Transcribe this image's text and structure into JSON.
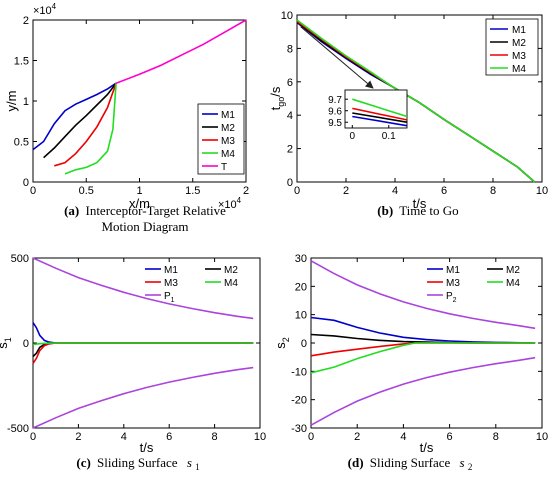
{
  "colors": {
    "M1": "#0000cc",
    "M2": "#000000",
    "M3": "#ee0000",
    "M4": "#22dd22",
    "T": "#ff00cc",
    "P": "#aa44dd"
  },
  "captions": [
    {
      "label": "(a)",
      "text": "Interceptor-Target Relative",
      "text2": "Motion Diagram"
    },
    {
      "label": "(b)",
      "text": "Time to Go"
    },
    {
      "label": "(c)",
      "text": "Sliding Surface",
      "sym": "s",
      "sub": "1"
    },
    {
      "label": "(d)",
      "text": "Sliding Surface",
      "sym": "s",
      "sub": "2"
    }
  ],
  "chart_data": [
    {
      "type": "line",
      "xlabel": "x/m",
      "ylabel": "y/m",
      "x_exponent": "×10",
      "x_exponent_power": "4",
      "y_exponent": "×10",
      "y_exponent_power": "4",
      "xlim": [
        0,
        2
      ],
      "ylim": [
        0,
        2
      ],
      "xticks": [
        "0",
        "0.5",
        "1",
        "1.5",
        "2"
      ],
      "yticks": [
        "0",
        "0.5",
        "1",
        "1.5",
        "2"
      ],
      "legend_position": "right",
      "series": [
        {
          "name": "M1",
          "x": [
            0,
            0.1,
            0.2,
            0.3,
            0.4,
            0.5,
            0.6,
            0.7,
            0.78
          ],
          "y": [
            0.4,
            0.5,
            0.72,
            0.88,
            0.96,
            1.02,
            1.08,
            1.15,
            1.22
          ]
        },
        {
          "name": "M2",
          "x": [
            0.1,
            0.2,
            0.3,
            0.4,
            0.5,
            0.6,
            0.7,
            0.78
          ],
          "y": [
            0.3,
            0.42,
            0.56,
            0.7,
            0.82,
            0.95,
            1.08,
            1.22
          ]
        },
        {
          "name": "M3",
          "x": [
            0.2,
            0.3,
            0.4,
            0.5,
            0.6,
            0.7,
            0.78
          ],
          "y": [
            0.2,
            0.24,
            0.35,
            0.5,
            0.68,
            0.92,
            1.22
          ]
        },
        {
          "name": "M4",
          "x": [
            0.3,
            0.4,
            0.5,
            0.6,
            0.7,
            0.75,
            0.78
          ],
          "y": [
            0.1,
            0.15,
            0.18,
            0.24,
            0.38,
            0.65,
            1.22
          ]
        },
        {
          "name": "T",
          "x": [
            0.78,
            1.0,
            1.2,
            1.4,
            1.6,
            1.8,
            2.0
          ],
          "y": [
            1.22,
            1.33,
            1.44,
            1.57,
            1.7,
            1.85,
            2.0
          ]
        }
      ]
    },
    {
      "type": "line",
      "xlabel": "t/s",
      "ylabel": "t",
      "ylabel_sub": "go",
      "ylabel_tail": "/s",
      "xlim": [
        0,
        10
      ],
      "ylim": [
        0,
        10
      ],
      "xticks": [
        "0",
        "2",
        "4",
        "6",
        "8",
        "10"
      ],
      "yticks": [
        "0",
        "2",
        "4",
        "6",
        "8",
        "10"
      ],
      "legend_position": "top-right",
      "series": [
        {
          "name": "M1",
          "x": [
            0,
            1,
            2,
            3,
            3.9,
            5,
            6,
            7,
            8,
            9,
            9.7
          ],
          "y": [
            9.55,
            8.4,
            7.4,
            6.45,
            5.7,
            4.75,
            3.75,
            2.8,
            1.85,
            0.9,
            0
          ]
        },
        {
          "name": "M2",
          "x": [
            0,
            1,
            2,
            3,
            3.9,
            5,
            6,
            7,
            8,
            9,
            9.7
          ],
          "y": [
            9.58,
            8.45,
            7.45,
            6.5,
            5.7,
            4.75,
            3.75,
            2.8,
            1.85,
            0.9,
            0
          ]
        },
        {
          "name": "M3",
          "x": [
            0,
            1,
            2,
            3,
            3.9,
            5,
            6,
            7,
            8,
            9,
            9.7
          ],
          "y": [
            9.62,
            8.55,
            7.5,
            6.55,
            5.7,
            4.75,
            3.75,
            2.8,
            1.85,
            0.9,
            0
          ]
        },
        {
          "name": "M4",
          "x": [
            0,
            1,
            2,
            3,
            3.9,
            5,
            6,
            7,
            8,
            9,
            9.7
          ],
          "y": [
            9.7,
            8.6,
            7.55,
            6.6,
            5.7,
            4.75,
            3.75,
            2.8,
            1.85,
            0.9,
            0
          ]
        }
      ],
      "inset": {
        "xlim": [
          -0.02,
          0.15
        ],
        "ylim": [
          9.45,
          9.78
        ],
        "xticks": [
          "0",
          "0.1"
        ],
        "yticks": [
          "9.5",
          "9.6",
          "9.7"
        ],
        "series": [
          {
            "name": "M1",
            "x": [
              0,
              0.15
            ],
            "y": [
              9.55,
              9.47
            ]
          },
          {
            "name": "M2",
            "x": [
              0,
              0.15
            ],
            "y": [
              9.58,
              9.5
            ]
          },
          {
            "name": "M3",
            "x": [
              0,
              0.15
            ],
            "y": [
              9.62,
              9.52
            ]
          },
          {
            "name": "M4",
            "x": [
              0,
              0.15
            ],
            "y": [
              9.7,
              9.55
            ]
          }
        ]
      }
    },
    {
      "type": "line",
      "xlabel": "t/s",
      "ylabel": "s",
      "ylabel_sub": "1",
      "xlim": [
        0,
        10
      ],
      "ylim": [
        -500,
        500
      ],
      "xticks": [
        "0",
        "2",
        "4",
        "6",
        "8",
        "10"
      ],
      "yticks": [
        "-500",
        "0",
        "500"
      ],
      "legend_position": "top-right",
      "legend": [
        "M1",
        "M2",
        "M3",
        "M4",
        "P"
      ],
      "legend_p_sub": "1",
      "series": [
        {
          "name": "M1",
          "x": [
            0,
            0.15,
            0.3,
            0.5,
            0.7,
            1.0,
            1.5,
            2,
            9.7
          ],
          "y": [
            120,
            90,
            45,
            15,
            5,
            0,
            0,
            0,
            0
          ]
        },
        {
          "name": "M2",
          "x": [
            0,
            0.15,
            0.3,
            0.5,
            0.7,
            1.0,
            1.5,
            2,
            9.7
          ],
          "y": [
            -80,
            -60,
            -25,
            -8,
            -2,
            0,
            0,
            0,
            0
          ]
        },
        {
          "name": "M3",
          "x": [
            0,
            0.15,
            0.3,
            0.5,
            0.7,
            1.0,
            1.5,
            2,
            9.7
          ],
          "y": [
            -120,
            -90,
            -45,
            -15,
            -5,
            0,
            0,
            0,
            0
          ]
        },
        {
          "name": "M4",
          "x": [
            0,
            0.3,
            0.6,
            1.0,
            9.7
          ],
          "y": [
            -8,
            -4,
            -1,
            0,
            0
          ]
        },
        {
          "name": "P1_upper",
          "x": [
            0,
            1,
            2,
            3,
            4,
            5,
            6,
            7,
            8,
            9,
            9.7
          ],
          "y": [
            500,
            440,
            385,
            340,
            298,
            262,
            230,
            203,
            178,
            157,
            145
          ]
        },
        {
          "name": "P1_lower",
          "x": [
            0,
            1,
            2,
            3,
            4,
            5,
            6,
            7,
            8,
            9,
            9.7
          ],
          "y": [
            -500,
            -440,
            -385,
            -340,
            -298,
            -262,
            -230,
            -203,
            -178,
            -157,
            -145
          ]
        }
      ]
    },
    {
      "type": "line",
      "xlabel": "t/s",
      "ylabel": "s",
      "ylabel_sub": "2",
      "xlim": [
        0,
        10
      ],
      "ylim": [
        -30,
        30
      ],
      "xticks": [
        "0",
        "2",
        "4",
        "6",
        "8",
        "10"
      ],
      "yticks": [
        "-30",
        "-20",
        "-10",
        "0",
        "10",
        "20",
        "30"
      ],
      "legend_position": "top-right",
      "legend": [
        "M1",
        "M2",
        "M3",
        "M4",
        "P"
      ],
      "legend_p_sub": "2",
      "series": [
        {
          "name": "M1",
          "x": [
            0,
            1,
            2,
            3,
            4,
            5,
            6,
            7,
            8,
            9.7
          ],
          "y": [
            9,
            8,
            5.5,
            3.5,
            2,
            1.2,
            0.7,
            0.4,
            0.2,
            0
          ]
        },
        {
          "name": "M2",
          "x": [
            0,
            1,
            2,
            3,
            4,
            5,
            6,
            7,
            9.7
          ],
          "y": [
            3,
            2.5,
            1.6,
            0.9,
            0.5,
            0.3,
            0.1,
            0,
            0
          ]
        },
        {
          "name": "M3",
          "x": [
            0,
            1,
            2,
            3,
            4,
            4.5,
            5,
            9.7
          ],
          "y": [
            -4.5,
            -3.2,
            -2.2,
            -1.2,
            -0.3,
            0,
            0,
            0
          ]
        },
        {
          "name": "M4",
          "x": [
            0,
            1,
            2,
            3,
            4,
            4.5,
            5,
            9.7
          ],
          "y": [
            -10.5,
            -8.5,
            -5.5,
            -3,
            -0.8,
            0,
            0,
            0
          ]
        },
        {
          "name": "P2_upper",
          "x": [
            0,
            1,
            2,
            3,
            4,
            5,
            6,
            7,
            8,
            9,
            9.7
          ],
          "y": [
            29,
            24.5,
            20.5,
            17.3,
            14.5,
            12.2,
            10.3,
            8.7,
            7.3,
            6.1,
            5.2
          ]
        },
        {
          "name": "P2_lower",
          "x": [
            0,
            1,
            2,
            3,
            4,
            5,
            6,
            7,
            8,
            9,
            9.7
          ],
          "y": [
            -29,
            -24.5,
            -20.5,
            -17.3,
            -14.5,
            -12.2,
            -10.3,
            -8.7,
            -7.3,
            -6.1,
            -5.2
          ]
        }
      ]
    }
  ]
}
